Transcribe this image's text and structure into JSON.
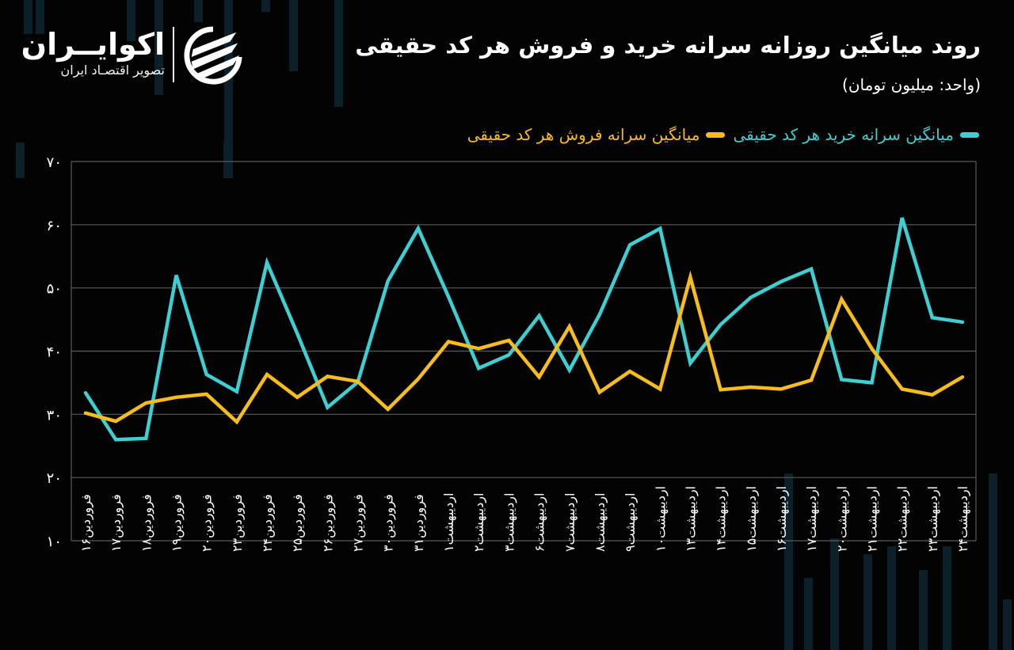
{
  "logo": {
    "name": "اکوایــران",
    "tagline": "تصویر اقتصـاد ایران"
  },
  "header": {
    "title": "روند میانگین روزانه سرانه خرید و فروش هر کد حقیقی",
    "subtitle": "(واحد: میلیون تومان)"
  },
  "legend": [
    {
      "label": "میانگین سرانه خرید هر کد حقیقی",
      "color": "#3ecfd2"
    },
    {
      "label": "میانگین سرانه فروش هر کد حقیقی",
      "color": "#f7bd1d"
    }
  ],
  "colors": {
    "background": "#030303",
    "grid": "#5a5a5a",
    "buy": "#3ecfd2",
    "sell": "#f7bd1d",
    "text": "#ffffff"
  },
  "chart_data": {
    "type": "line",
    "title": "روند میانگین روزانه سرانه خرید و فروش هر کد حقیقی",
    "subtitle": "(واحد: میلیون تومان)",
    "xlabel": "",
    "ylabel": "میلیون تومان",
    "ylim": [
      10,
      70
    ],
    "yticks": [
      10,
      20,
      30,
      40,
      50,
      60,
      70
    ],
    "ytick_labels": [
      "۱۰",
      "۲۰",
      "۳۰",
      "۴۰",
      "۵۰",
      "۶۰",
      "۷۰"
    ],
    "grid": true,
    "legend_position": "top",
    "categories": [
      "فروردین۱۶",
      "فروردین۱۷",
      "فروردین۱۸",
      "فروردین۱۹",
      "فروردین۲۰",
      "فروردین۲۳",
      "فروردین۲۴",
      "فروردین۲۵",
      "فروردین۲۶",
      "فروردین۲۷",
      "فروردین۳۰",
      "فروردین۳۱",
      "اردیبهشت۱",
      "اردیبهشت۲",
      "اردیبهشت۳",
      "اردیبهشت۶",
      "اردیبهشت۷",
      "اردیبهشت۸",
      "اردیبهشت۹",
      "اردیبهشت۱۰",
      "اردیبهشت۱۳",
      "اردیبهشت۱۴",
      "اردیبهشت۱۵",
      "اردیبهشت۱۶",
      "اردیبهشت۱۷",
      "اردیبهشت۲۰",
      "اردیبهشت۲۱",
      "اردیبهشت۲۲",
      "اردیبهشت۲۳",
      "اردیبهشت۲۴"
    ],
    "series": [
      {
        "name": "میانگین سرانه خرید هر کد حقیقی",
        "color": "#3ecfd2",
        "values": [
          33.4,
          26.0,
          26.2,
          52.0,
          36.3,
          33.6,
          54.0,
          42.8,
          31.1,
          35.1,
          51.1,
          59.4,
          48.6,
          37.3,
          39.4,
          45.6,
          37.0,
          45.8,
          56.8,
          59.4,
          38.1,
          44.2,
          48.5,
          51.0,
          53.0,
          35.5,
          35.0,
          61.1,
          45.3,
          44.6
        ]
      },
      {
        "name": "میانگین سرانه فروش هر کد حقیقی",
        "color": "#f7bd1d",
        "values": [
          30.2,
          28.9,
          31.8,
          32.7,
          33.2,
          28.8,
          36.3,
          32.7,
          36.0,
          35.2,
          30.8,
          35.6,
          41.5,
          40.4,
          41.7,
          35.9,
          43.9,
          33.5,
          36.8,
          34.0,
          51.7,
          33.9,
          34.3,
          34.0,
          35.4,
          48.2,
          40.4,
          34.0,
          33.1,
          35.9
        ]
      }
    ]
  }
}
